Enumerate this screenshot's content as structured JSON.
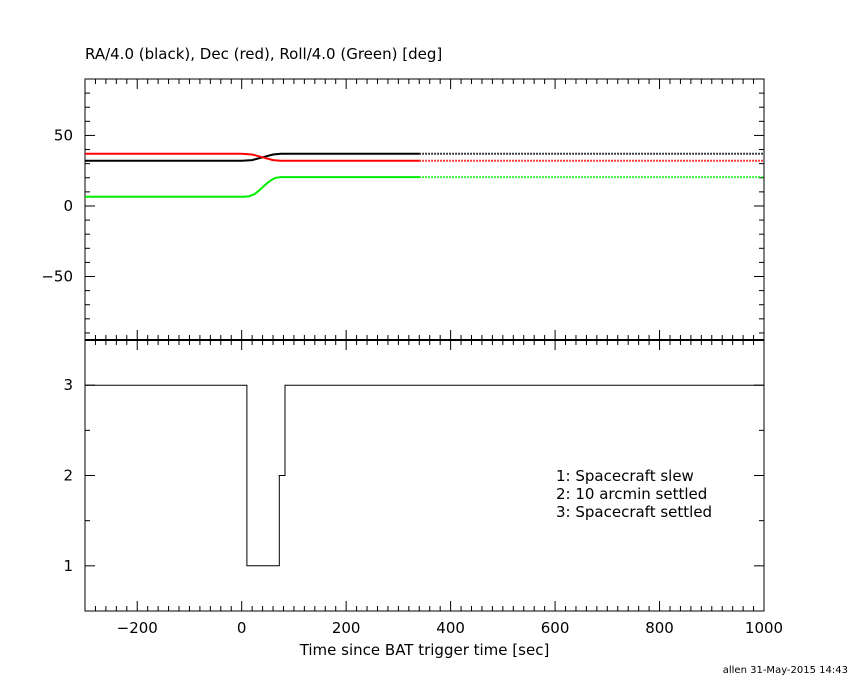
{
  "footer_credit": "allen 31-May-2015 14:43",
  "chart_data": [
    {
      "type": "line",
      "title": "RA/4.0 (black), Dec (red), Roll/4.0 (Green) [deg]",
      "xlim": [
        -300,
        1000
      ],
      "ylim": [
        -95,
        90
      ],
      "x_ticks": [
        -200,
        0,
        200,
        400,
        600,
        800,
        1000
      ],
      "y_ticks": [
        -50,
        0,
        50
      ],
      "series": [
        {
          "color": "#000000",
          "values": [
            [
              -300,
              32
            ],
            [
              0,
              32
            ],
            [
              20,
              32.5
            ],
            [
              40,
              34.5
            ],
            [
              60,
              36.5
            ],
            [
              75,
              37
            ],
            [
              340,
              37
            ]
          ],
          "dotted_values": [
            [
              340,
              37
            ],
            [
              1000,
              37
            ]
          ]
        },
        {
          "color": "#ff0000",
          "values": [
            [
              -300,
              37
            ],
            [
              0,
              37
            ],
            [
              20,
              36.5
            ],
            [
              40,
              34.5
            ],
            [
              60,
              32.5
            ],
            [
              75,
              32
            ],
            [
              340,
              32
            ]
          ],
          "dotted_values": [
            [
              340,
              32
            ],
            [
              1000,
              32
            ]
          ]
        },
        {
          "color": "#00ee00",
          "values": [
            [
              -300,
              6.5
            ],
            [
              5,
              6.5
            ],
            [
              15,
              7
            ],
            [
              25,
              8.5
            ],
            [
              35,
              11.5
            ],
            [
              45,
              15
            ],
            [
              55,
              18
            ],
            [
              65,
              20
            ],
            [
              75,
              20.5
            ],
            [
              340,
              20.5
            ]
          ],
          "dotted_values": [
            [
              340,
              20.5
            ],
            [
              1000,
              20.5
            ]
          ]
        }
      ]
    },
    {
      "type": "line",
      "xlabel": "Time since BAT trigger time [sec]",
      "xlim": [
        -300,
        1000
      ],
      "ylim": [
        0.5,
        3.5
      ],
      "x_ticks": [
        -200,
        0,
        200,
        400,
        600,
        800,
        1000
      ],
      "y_ticks": [
        1,
        2,
        3
      ],
      "legend": [
        "1: Spacecraft slew",
        "2: 10 arcmin settled",
        "3: Spacecraft settled"
      ],
      "legend_position": "right",
      "series": [
        {
          "color": "#000000",
          "step": true,
          "values": [
            [
              -300,
              3
            ],
            [
              10,
              3
            ],
            [
              10,
              1
            ],
            [
              72,
              1
            ],
            [
              72,
              2
            ],
            [
              83,
              2
            ],
            [
              83,
              3
            ],
            [
              1000,
              3
            ]
          ]
        }
      ]
    }
  ]
}
